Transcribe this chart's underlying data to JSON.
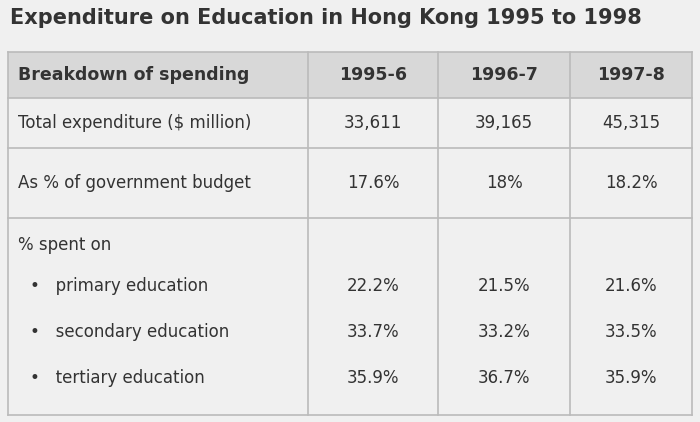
{
  "title": "Expenditure on Education in Hong Kong 1995 to 1998",
  "title_fontsize": 15,
  "title_color": "#333333",
  "background_color": "#f0f0f0",
  "header_row": [
    "Breakdown of spending",
    "1995-6",
    "1996-7",
    "1997-8"
  ],
  "rows": [
    [
      "Total expenditure ($ million)",
      "33,611",
      "39,165",
      "45,315"
    ],
    [
      "As % of government budget",
      "17.6%",
      "18%",
      "18.2%"
    ],
    [
      "pct_spent_on",
      "22.2%|33.7%|35.9%",
      "21.5%|33.2%|36.7%",
      "21.6%|33.5%|35.9%"
    ]
  ],
  "header_fontsize": 12.5,
  "cell_fontsize": 12,
  "border_color": "#bbbbbb",
  "cell_bg": "#f0f0f0",
  "header_bg": "#d8d8d8"
}
